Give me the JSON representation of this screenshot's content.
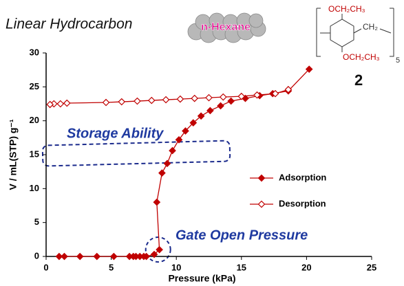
{
  "chart_data": {
    "type": "line",
    "title": "Linear Hydrocarbon",
    "molecule_label": "n-Hexane",
    "structure": {
      "top_group": "OCH₂CH₃",
      "bridge": "CH₂",
      "bottom_group": "OCH₂CH₃",
      "repeat": "5",
      "compound": "2"
    },
    "annotations": [
      "Storage Ability",
      "Gate Open Pressure"
    ],
    "x_label": "Pressure (kPa)",
    "y_label": "V / mL(STP) g⁻¹",
    "xlim": [
      0,
      25
    ],
    "xticks": [
      0,
      5,
      10,
      15,
      20,
      25
    ],
    "ylim": [
      0,
      30
    ],
    "yticks": [
      0,
      5,
      10,
      15,
      20,
      25,
      30
    ],
    "grid": false,
    "legend": "right",
    "series": [
      {
        "name": "Adsorption",
        "color": "#c00000",
        "marker": "filled",
        "x": [
          1.0,
          1.4,
          2.6,
          3.9,
          5.2,
          6.4,
          6.7,
          6.9,
          7.2,
          7.5,
          7.7,
          8.3,
          8.7,
          8.5,
          8.9,
          9.3,
          9.7,
          10.2,
          10.7,
          11.3,
          11.9,
          12.6,
          13.4,
          14.2,
          15.3,
          16.4,
          17.4,
          18.6,
          20.2
        ],
        "values": [
          0,
          0,
          0,
          0,
          0,
          0,
          0,
          0,
          0,
          0,
          0,
          0.3,
          1.0,
          8.0,
          12.3,
          13.7,
          15.6,
          17.2,
          18.5,
          19.7,
          20.7,
          21.5,
          22.2,
          22.9,
          23.3,
          23.7,
          24.0,
          24.4,
          27.6
        ]
      },
      {
        "name": "Desorption",
        "color": "#c00000",
        "marker": "open",
        "x": [
          18.6,
          17.6,
          16.2,
          15.0,
          13.6,
          12.5,
          11.4,
          10.3,
          9.2,
          8.1,
          7.0,
          5.8,
          4.6,
          1.6,
          1.1,
          0.6,
          0.3
        ],
        "values": [
          24.6,
          24.0,
          23.8,
          23.6,
          23.5,
          23.4,
          23.3,
          23.2,
          23.1,
          23.0,
          22.9,
          22.8,
          22.7,
          22.6,
          22.5,
          22.5,
          22.4
        ]
      }
    ]
  }
}
